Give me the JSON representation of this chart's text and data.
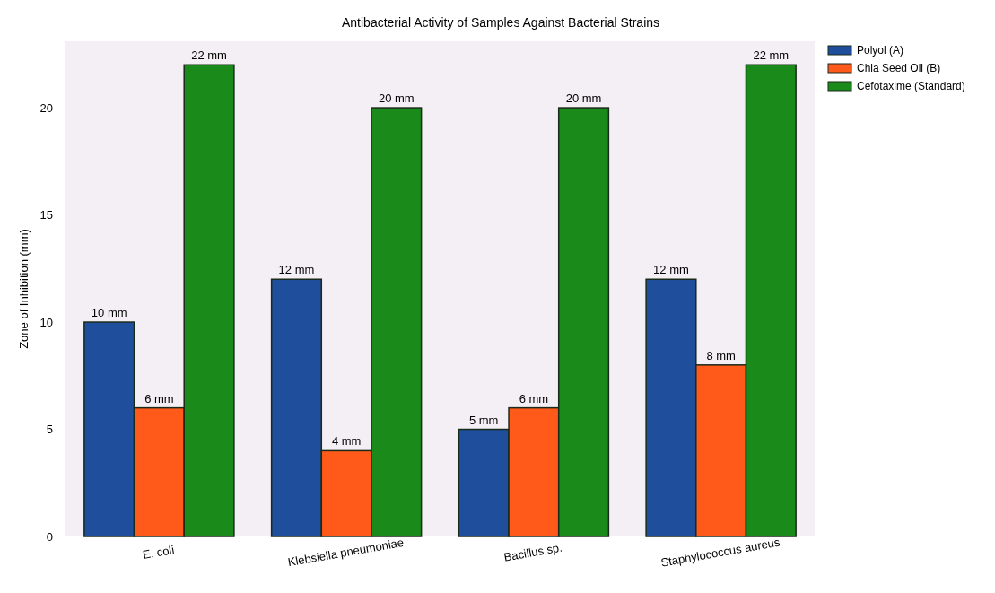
{
  "chart_data": {
    "type": "bar",
    "title": "Antibacterial Activity of Samples Against Bacterial Strains",
    "ylabel": "Zone of Inhibition (mm)",
    "categories": [
      "E. coli",
      "Klebsiella pneumoniae",
      "Bacillus sp.",
      "Staphylococcus aureus"
    ],
    "series": [
      {
        "name": "Polyol (A)",
        "color": "#1f4e9c",
        "values": [
          10,
          12,
          5,
          12
        ],
        "value_labels": [
          "10 mm",
          "12 mm",
          "5 mm",
          "12 mm"
        ]
      },
      {
        "name": "Chia Seed Oil (B)",
        "color": "#ff5a1a",
        "values": [
          6,
          4,
          6,
          8
        ],
        "value_labels": [
          "6 mm",
          "4 mm",
          "6 mm",
          "8 mm"
        ]
      },
      {
        "name": "Cefotaxime (Standard)",
        "color": "#1a8a1a",
        "values": [
          22,
          20,
          20,
          22
        ],
        "value_labels": [
          "22 mm",
          "20 mm",
          "20 mm",
          "22 mm"
        ]
      }
    ],
    "ylim": [
      0,
      23.1
    ],
    "yticks": [
      0,
      5,
      10,
      15,
      20
    ],
    "grid": false,
    "legend": "right"
  }
}
